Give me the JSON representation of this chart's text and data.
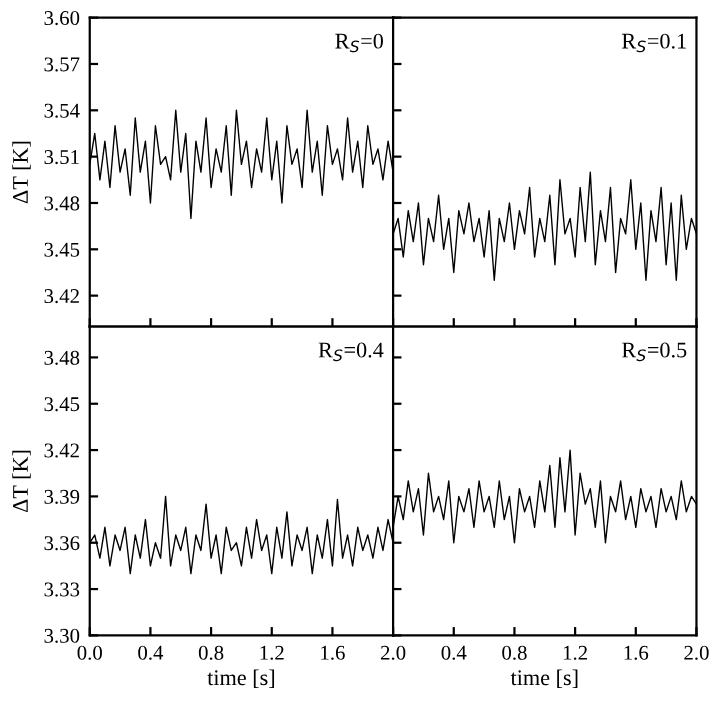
{
  "chart_data": [
    {
      "type": "line",
      "ylabel": "ΔT [K]",
      "annotations": [
        "R$_{S}$=0"
      ],
      "tick_labels": "y",
      "grid": false,
      "xlim": [
        0,
        2
      ],
      "xticks": [
        {
          "value": 0,
          "label": null
        },
        {
          "value": 0.4,
          "label": null
        },
        {
          "value": 0.8,
          "label": null
        },
        {
          "value": 1.2,
          "label": null
        },
        {
          "value": 1.6,
          "label": null
        },
        {
          "value": 2,
          "label": null
        }
      ],
      "ylim": [
        3.4,
        3.6
      ],
      "yticks": [
        3.42,
        3.45,
        3.48,
        3.51,
        3.54,
        3.57,
        {
          "value": 3.6,
          "label": "3.60"
        }
      ],
      "x": [
        0,
        0.033,
        0.067,
        0.1,
        0.133,
        0.167,
        0.2,
        0.233,
        0.267,
        0.3,
        0.333,
        0.367,
        0.4,
        0.433,
        0.467,
        0.5,
        0.533,
        0.567,
        0.6,
        0.633,
        0.667,
        0.7,
        0.733,
        0.767,
        0.8,
        0.833,
        0.867,
        0.9,
        0.933,
        0.967,
        1,
        1.033,
        1.067,
        1.1,
        1.133,
        1.167,
        1.2,
        1.233,
        1.267,
        1.3,
        1.333,
        1.367,
        1.4,
        1.433,
        1.467,
        1.5,
        1.533,
        1.567,
        1.6,
        1.633,
        1.667,
        1.7,
        1.733,
        1.767,
        1.8,
        1.833,
        1.867,
        1.9,
        1.933,
        1.967,
        2
      ],
      "series": [
        {
          "color": "#000000",
          "values": [
            3.505,
            3.525,
            3.495,
            3.52,
            3.49,
            3.53,
            3.5,
            3.515,
            3.485,
            3.535,
            3.5,
            3.52,
            3.48,
            3.53,
            3.505,
            3.51,
            3.495,
            3.54,
            3.5,
            3.525,
            3.47,
            3.52,
            3.5,
            3.535,
            3.49,
            3.515,
            3.5,
            3.53,
            3.485,
            3.54,
            3.505,
            3.52,
            3.49,
            3.515,
            3.5,
            3.535,
            3.495,
            3.52,
            3.48,
            3.53,
            3.505,
            3.515,
            3.49,
            3.54,
            3.5,
            3.52,
            3.485,
            3.53,
            3.505,
            3.515,
            3.495,
            3.535,
            3.5,
            3.52,
            3.49,
            3.53,
            3.505,
            3.515,
            3.495,
            3.52,
            3.5
          ]
        }
      ]
    },
    {
      "type": "line",
      "annotations": [
        "R$_{S}$=0.1"
      ],
      "tick_labels": false,
      "grid": false,
      "xlim": [
        0,
        2
      ],
      "xticks": [
        {
          "value": 0,
          "label": null
        },
        {
          "value": 0.4,
          "label": null
        },
        {
          "value": 0.8,
          "label": null
        },
        {
          "value": 1.2,
          "label": null
        },
        {
          "value": 1.6,
          "label": null
        },
        {
          "value": 2,
          "label": null
        }
      ],
      "ylim": [
        3.4,
        3.6
      ],
      "yticks": [
        {
          "value": 3.42,
          "label": null
        },
        {
          "value": 3.45,
          "label": null
        },
        {
          "value": 3.48,
          "label": null
        },
        {
          "value": 3.51,
          "label": null
        },
        {
          "value": 3.54,
          "label": null
        },
        {
          "value": 3.57,
          "label": null
        },
        {
          "value": 3.6,
          "label": null
        }
      ],
      "x": [
        0,
        0.033,
        0.067,
        0.1,
        0.133,
        0.167,
        0.2,
        0.233,
        0.267,
        0.3,
        0.333,
        0.367,
        0.4,
        0.433,
        0.467,
        0.5,
        0.533,
        0.567,
        0.6,
        0.633,
        0.667,
        0.7,
        0.733,
        0.767,
        0.8,
        0.833,
        0.867,
        0.9,
        0.933,
        0.967,
        1,
        1.033,
        1.067,
        1.1,
        1.133,
        1.167,
        1.2,
        1.233,
        1.267,
        1.3,
        1.333,
        1.367,
        1.4,
        1.433,
        1.467,
        1.5,
        1.533,
        1.567,
        1.6,
        1.633,
        1.667,
        1.7,
        1.733,
        1.767,
        1.8,
        1.833,
        1.867,
        1.9,
        1.933,
        1.967,
        2
      ],
      "series": [
        {
          "color": "#000000",
          "values": [
            3.46,
            3.47,
            3.445,
            3.475,
            3.455,
            3.48,
            3.44,
            3.47,
            3.455,
            3.485,
            3.45,
            3.47,
            3.435,
            3.475,
            3.46,
            3.48,
            3.455,
            3.47,
            3.445,
            3.475,
            3.43,
            3.47,
            3.455,
            3.48,
            3.45,
            3.475,
            3.46,
            3.49,
            3.445,
            3.47,
            3.455,
            3.485,
            3.44,
            3.495,
            3.46,
            3.47,
            3.445,
            3.49,
            3.455,
            3.5,
            3.44,
            3.475,
            3.455,
            3.49,
            3.435,
            3.47,
            3.46,
            3.495,
            3.45,
            3.48,
            3.43,
            3.475,
            3.455,
            3.49,
            3.44,
            3.48,
            3.43,
            3.485,
            3.45,
            3.47,
            3.46
          ]
        }
      ]
    },
    {
      "type": "line",
      "xlabel": "time [s]",
      "ylabel": "ΔT [K]",
      "annotations": [
        "R$_{S}$=0.4"
      ],
      "grid": false,
      "xlim": [
        0,
        2
      ],
      "xticks": [
        {
          "value": 0,
          "label": "0.0"
        },
        {
          "value": 0.4,
          "label": "0.4"
        },
        {
          "value": 0.8,
          "label": "0.8"
        },
        {
          "value": 1.2,
          "label": "1.2"
        },
        {
          "value": 1.6,
          "label": "1.6"
        },
        {
          "value": 2,
          "label": "2.0"
        }
      ],
      "ylim": [
        3.3,
        3.5
      ],
      "yticks": [
        {
          "value": 3.3,
          "label": "3.30"
        },
        3.33,
        3.36,
        3.39,
        3.42,
        3.45,
        3.48
      ],
      "x": [
        0,
        0.033,
        0.067,
        0.1,
        0.133,
        0.167,
        0.2,
        0.233,
        0.267,
        0.3,
        0.333,
        0.367,
        0.4,
        0.433,
        0.467,
        0.5,
        0.533,
        0.567,
        0.6,
        0.633,
        0.667,
        0.7,
        0.733,
        0.767,
        0.8,
        0.833,
        0.867,
        0.9,
        0.933,
        0.967,
        1,
        1.033,
        1.067,
        1.1,
        1.133,
        1.167,
        1.2,
        1.233,
        1.267,
        1.3,
        1.333,
        1.367,
        1.4,
        1.433,
        1.467,
        1.5,
        1.533,
        1.567,
        1.6,
        1.633,
        1.667,
        1.7,
        1.733,
        1.767,
        1.8,
        1.833,
        1.867,
        1.9,
        1.933,
        1.967,
        2
      ],
      "series": [
        {
          "color": "#000000",
          "values": [
            3.36,
            3.365,
            3.35,
            3.37,
            3.345,
            3.365,
            3.355,
            3.37,
            3.34,
            3.365,
            3.35,
            3.375,
            3.345,
            3.36,
            3.35,
            3.39,
            3.345,
            3.365,
            3.355,
            3.37,
            3.34,
            3.365,
            3.355,
            3.385,
            3.35,
            3.365,
            3.34,
            3.37,
            3.355,
            3.36,
            3.345,
            3.37,
            3.35,
            3.375,
            3.355,
            3.365,
            3.34,
            3.37,
            3.35,
            3.38,
            3.345,
            3.365,
            3.355,
            3.37,
            3.34,
            3.365,
            3.35,
            3.375,
            3.345,
            3.388,
            3.35,
            3.365,
            3.345,
            3.37,
            3.355,
            3.365,
            3.35,
            3.37,
            3.355,
            3.375,
            3.36
          ]
        }
      ]
    },
    {
      "type": "line",
      "xlabel": "time [s]",
      "annotations": [
        "R$_{S}$=0.5"
      ],
      "tick_labels": "x",
      "grid": false,
      "xlim": [
        0,
        2
      ],
      "xticks": [
        {
          "value": 0,
          "label": null
        },
        {
          "value": 0.4,
          "label": "0.4"
        },
        {
          "value": 0.8,
          "label": "0.8"
        },
        {
          "value": 1.2,
          "label": "1.2"
        },
        {
          "value": 1.6,
          "label": "1.6"
        },
        {
          "value": 2,
          "label": "2.0"
        }
      ],
      "ylim": [
        3.3,
        3.5
      ],
      "yticks": [
        {
          "value": 3.3,
          "label": null
        },
        {
          "value": 3.33,
          "label": null
        },
        {
          "value": 3.36,
          "label": null
        },
        {
          "value": 3.39,
          "label": null
        },
        {
          "value": 3.42,
          "label": null
        },
        {
          "value": 3.45,
          "label": null
        },
        {
          "value": 3.48,
          "label": null
        }
      ],
      "x": [
        0,
        0.033,
        0.067,
        0.1,
        0.133,
        0.167,
        0.2,
        0.233,
        0.267,
        0.3,
        0.333,
        0.367,
        0.4,
        0.433,
        0.467,
        0.5,
        0.533,
        0.567,
        0.6,
        0.633,
        0.667,
        0.7,
        0.733,
        0.767,
        0.8,
        0.833,
        0.867,
        0.9,
        0.933,
        0.967,
        1,
        1.033,
        1.067,
        1.1,
        1.133,
        1.167,
        1.2,
        1.233,
        1.267,
        1.3,
        1.333,
        1.367,
        1.4,
        1.433,
        1.467,
        1.5,
        1.533,
        1.567,
        1.6,
        1.633,
        1.667,
        1.7,
        1.733,
        1.767,
        1.8,
        1.833,
        1.867,
        1.9,
        1.933,
        1.967,
        2
      ],
      "series": [
        {
          "color": "#000000",
          "values": [
            3.37,
            3.39,
            3.375,
            3.4,
            3.38,
            3.395,
            3.365,
            3.405,
            3.38,
            3.39,
            3.375,
            3.4,
            3.36,
            3.39,
            3.38,
            3.395,
            3.37,
            3.4,
            3.38,
            3.39,
            3.37,
            3.4,
            3.375,
            3.39,
            3.36,
            3.395,
            3.38,
            3.39,
            3.37,
            3.4,
            3.38,
            3.41,
            3.37,
            3.415,
            3.38,
            3.42,
            3.365,
            3.405,
            3.385,
            3.395,
            3.37,
            3.4,
            3.36,
            3.39,
            3.38,
            3.4,
            3.375,
            3.39,
            3.37,
            3.395,
            3.38,
            3.39,
            3.37,
            3.395,
            3.38,
            3.39,
            3.375,
            3.4,
            3.38,
            3.39,
            3.385
          ]
        }
      ]
    }
  ]
}
